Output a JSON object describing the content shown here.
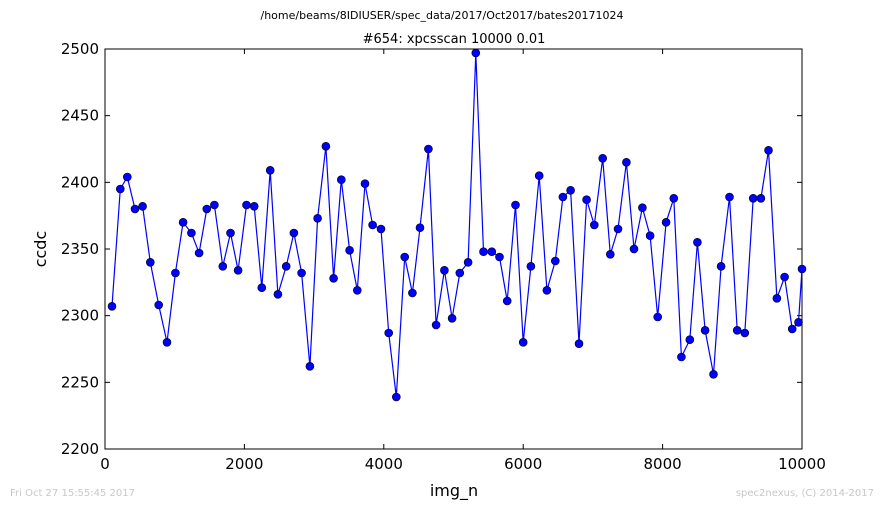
{
  "header": {
    "path": "/home/beams/8IDIUSER/spec_data/2017/Oct2017/bates20171024"
  },
  "footer": {
    "timestamp": "Fri Oct 27 15:55:45 2017",
    "credit": "spec2nexus, (C) 2014-2017"
  },
  "chart_data": {
    "type": "line",
    "title": "#654: xpcsscan 10000 0.01",
    "xlabel": "img_n",
    "ylabel": "ccdc",
    "xlim": [
      0,
      10000
    ],
    "ylim": [
      2200,
      2500
    ],
    "x_ticks": [
      0,
      2000,
      4000,
      6000,
      8000,
      10000
    ],
    "y_ticks": [
      2200,
      2250,
      2300,
      2350,
      2400,
      2450,
      2500
    ],
    "line_color": "#0000ff",
    "marker": "circle",
    "marker_color": "#0000ff",
    "grid": false,
    "legend": false,
    "series": [
      {
        "x": [
          100,
          220,
          320,
          430,
          540,
          650,
          770,
          890,
          1010,
          1120,
          1240,
          1350,
          1460,
          1570,
          1690,
          1800,
          1910,
          2030,
          2140,
          2250,
          2370,
          2480,
          2600,
          2710,
          2820,
          2940,
          3050,
          3170,
          3280,
          3390,
          3510,
          3620,
          3730,
          3840,
          3960,
          4070,
          4180,
          4300,
          4410,
          4520,
          4640,
          4750,
          4870,
          4980,
          5090,
          5210,
          5320,
          5430,
          5550,
          5660,
          5770,
          5890,
          6000,
          6110,
          6230,
          6340,
          6460,
          6570,
          6680,
          6800,
          6910,
          7020,
          7140,
          7250,
          7360,
          7480,
          7590,
          7710,
          7820,
          7930,
          8050,
          8160,
          8270,
          8390,
          8500,
          8610,
          8730,
          8840,
          8960,
          9070,
          9180,
          9300,
          9410,
          9520,
          9640,
          9750,
          9860,
          9950,
          10000
        ],
        "values": [
          2307,
          2395,
          2404,
          2380,
          2382,
          2340,
          2308,
          2280,
          2332,
          2370,
          2362,
          2347,
          2380,
          2383,
          2337,
          2362,
          2334,
          2383,
          2382,
          2321,
          2409,
          2316,
          2337,
          2362,
          2332,
          2262,
          2373,
          2427,
          2328,
          2402,
          2349,
          2319,
          2399,
          2368,
          2365,
          2287,
          2239,
          2344,
          2317,
          2366,
          2425,
          2293,
          2334,
          2298,
          2332,
          2340,
          2497,
          2348,
          2348,
          2344,
          2311,
          2383,
          2280,
          2337,
          2405,
          2319,
          2341,
          2389,
          2394,
          2279,
          2387,
          2368,
          2418,
          2346,
          2365,
          2415,
          2350,
          2381,
          2360,
          2299,
          2370,
          2388,
          2269,
          2282,
          2355,
          2289,
          2256,
          2337,
          2389,
          2289,
          2287,
          2388,
          2388,
          2424,
          2313,
          2329,
          2290,
          2295,
          2335
        ]
      }
    ]
  }
}
